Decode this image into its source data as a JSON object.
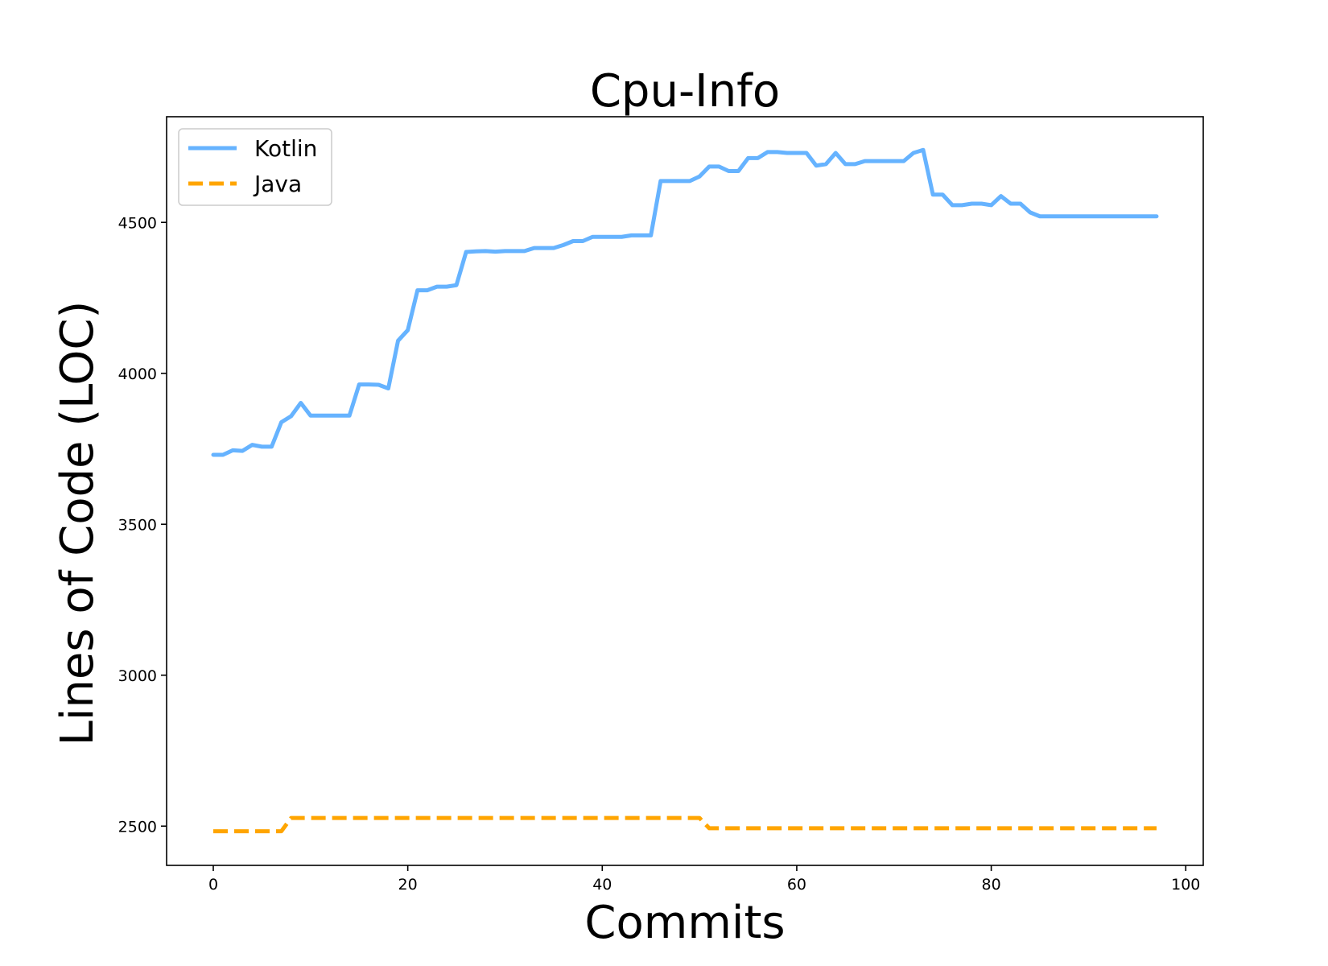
{
  "chart_data": {
    "type": "line",
    "title": "Cpu-Info",
    "xlabel": "Commits",
    "ylabel": "Lines of Code (LOC)",
    "xlim": [
      -4.8,
      101.8
    ],
    "ylim": [
      2370,
      4850
    ],
    "xticks": [
      0,
      20,
      40,
      60,
      80,
      100
    ],
    "yticks": [
      2500,
      3000,
      3500,
      4000,
      4500
    ],
    "grid": false,
    "legend_position": "top-left",
    "series": [
      {
        "name": "Kotlin",
        "color": "#66b3ff",
        "style": "solid",
        "points": [
          [
            0,
            3730
          ],
          [
            1,
            3730
          ],
          [
            2,
            3745
          ],
          [
            3,
            3743
          ],
          [
            4,
            3763
          ],
          [
            5,
            3757
          ],
          [
            6,
            3757
          ],
          [
            7,
            3838
          ],
          [
            8,
            3858
          ],
          [
            9,
            3902
          ],
          [
            10,
            3860
          ],
          [
            11,
            3860
          ],
          [
            12,
            3860
          ],
          [
            13,
            3860
          ],
          [
            14,
            3860
          ],
          [
            15,
            3963
          ],
          [
            16,
            3963
          ],
          [
            17,
            3962
          ],
          [
            18,
            3950
          ],
          [
            19,
            4108
          ],
          [
            20,
            4143
          ],
          [
            21,
            4275
          ],
          [
            22,
            4275
          ],
          [
            23,
            4287
          ],
          [
            24,
            4287
          ],
          [
            25,
            4292
          ],
          [
            26,
            4402
          ],
          [
            27,
            4404
          ],
          [
            28,
            4405
          ],
          [
            29,
            4403
          ],
          [
            30,
            4405
          ],
          [
            31,
            4405
          ],
          [
            32,
            4405
          ],
          [
            33,
            4415
          ],
          [
            34,
            4415
          ],
          [
            35,
            4415
          ],
          [
            36,
            4425
          ],
          [
            37,
            4438
          ],
          [
            38,
            4438
          ],
          [
            39,
            4452
          ],
          [
            40,
            4452
          ],
          [
            41,
            4452
          ],
          [
            42,
            4452
          ],
          [
            43,
            4457
          ],
          [
            44,
            4457
          ],
          [
            45,
            4457
          ],
          [
            46,
            4637
          ],
          [
            47,
            4637
          ],
          [
            48,
            4637
          ],
          [
            49,
            4637
          ],
          [
            50,
            4652
          ],
          [
            51,
            4685
          ],
          [
            52,
            4685
          ],
          [
            53,
            4670
          ],
          [
            54,
            4670
          ],
          [
            55,
            4713
          ],
          [
            56,
            4713
          ],
          [
            57,
            4733
          ],
          [
            58,
            4733
          ],
          [
            59,
            4730
          ],
          [
            60,
            4730
          ],
          [
            61,
            4730
          ],
          [
            62,
            4688
          ],
          [
            63,
            4693
          ],
          [
            64,
            4730
          ],
          [
            65,
            4693
          ],
          [
            66,
            4693
          ],
          [
            67,
            4703
          ],
          [
            68,
            4703
          ],
          [
            69,
            4703
          ],
          [
            70,
            4703
          ],
          [
            71,
            4703
          ],
          [
            72,
            4730
          ],
          [
            73,
            4740
          ],
          [
            74,
            4592
          ],
          [
            75,
            4592
          ],
          [
            76,
            4557
          ],
          [
            77,
            4557
          ],
          [
            78,
            4562
          ],
          [
            79,
            4562
          ],
          [
            80,
            4557
          ],
          [
            81,
            4587
          ],
          [
            82,
            4562
          ],
          [
            83,
            4562
          ],
          [
            84,
            4533
          ],
          [
            85,
            4520
          ],
          [
            86,
            4520
          ],
          [
            87,
            4520
          ],
          [
            88,
            4520
          ],
          [
            89,
            4520
          ],
          [
            90,
            4520
          ],
          [
            91,
            4520
          ],
          [
            92,
            4520
          ],
          [
            93,
            4520
          ],
          [
            94,
            4520
          ],
          [
            95,
            4520
          ],
          [
            96,
            4520
          ],
          [
            97,
            4520
          ]
        ]
      },
      {
        "name": "Java",
        "color": "#ffa500",
        "style": "dashed",
        "points": [
          [
            0,
            2483
          ],
          [
            7,
            2483
          ],
          [
            8,
            2527
          ],
          [
            50,
            2527
          ],
          [
            51,
            2493
          ],
          [
            97,
            2493
          ]
        ]
      }
    ]
  }
}
